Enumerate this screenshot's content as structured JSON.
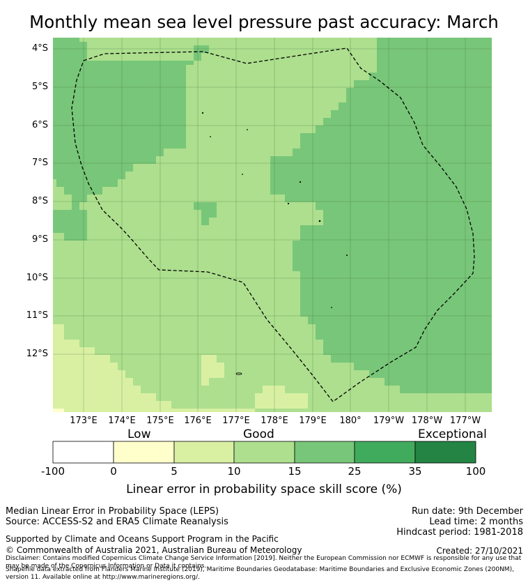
{
  "title": "Monthly mean sea level pressure past accuracy: March",
  "map": {
    "latitude_labels": [
      "4°S",
      "5°S",
      "6°S",
      "7°S",
      "8°S",
      "9°S",
      "10°S",
      "11°S",
      "12°S"
    ],
    "longitude_labels": [
      "173°E",
      "174°E",
      "175°E",
      "176°E",
      "177°E",
      "178°E",
      "179°E",
      "180°",
      "179°W",
      "178°W",
      "177°W"
    ],
    "boundary": "Maritime boundary (EEZ), dashed",
    "colors": {
      "cat_10_15": "#addf8e",
      "cat_15_25": "#78c679",
      "cat_5_10": "#d9f0a3",
      "cat_0_5": "#ffffcc",
      "boundary_line": "#000000"
    }
  },
  "categories": {
    "low": "Low",
    "good": "Good",
    "exceptional": "Exceptional"
  },
  "colorbar": {
    "ticks": [
      "-100",
      "0",
      "5",
      "10",
      "15",
      "25",
      "35",
      "100"
    ],
    "colors": [
      "#ffffff",
      "#ffffcc",
      "#d9f0a3",
      "#addf8e",
      "#78c679",
      "#41ab5d",
      "#238443"
    ],
    "title": "Linear error in probability space skill score (%)"
  },
  "footer": {
    "metric": "Median Linear Error in Probability Space (LEPS)",
    "source": "Source: ACCESS-S2 and ERA5 Climate Reanalysis",
    "run_date": "Run date: 9th December",
    "lead_time": "Lead time: 2 months",
    "hindcast": "Hindcast period: 1981-2018",
    "support": "Supported by Climate and Oceans Support Program in the Pacific",
    "copyright": "© Commonwealth of Australia 2021, Australian Bureau of Meteorology",
    "created": "Created: 27/10/2021",
    "disclaimer": "Disclaimer: Contains modified Copernicus Climate Change Service Information [2019]. Neither the European Commission nor ECMWF is responsible for any use that may be made of the Copernicus Information or Data it contains.",
    "shapefile": "Shapefile data extracted from Flanders Marine Institute (2019), Maritime Boundaries Geodatabase: Maritime Boundaries and Exclusive Economic Zones (200NM), version 11. Available online at http://www.marineregions.org/."
  }
}
